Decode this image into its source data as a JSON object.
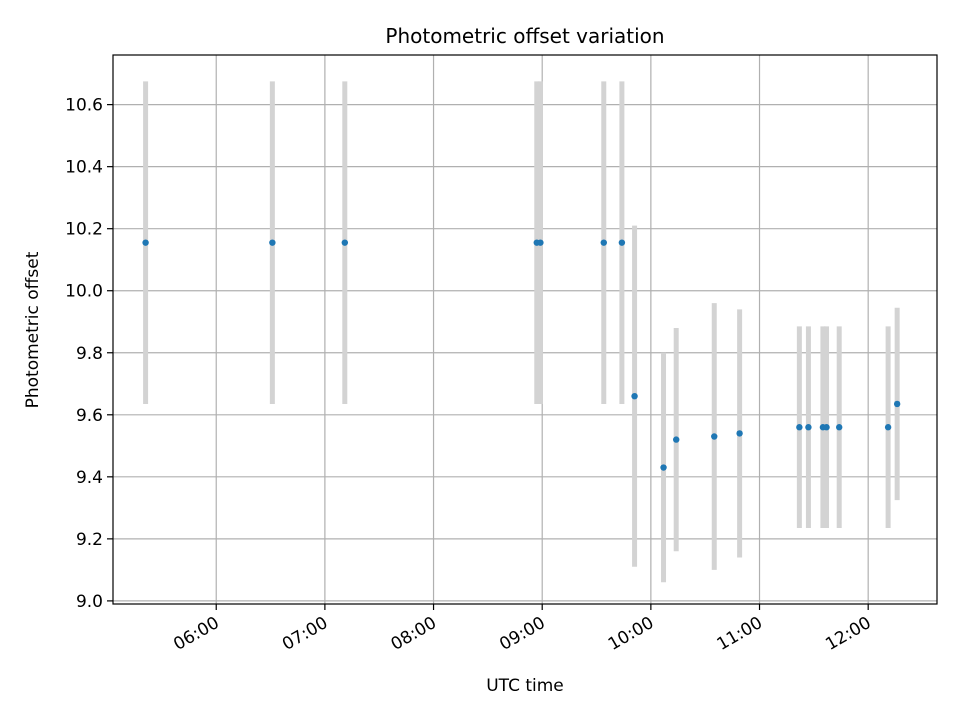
{
  "chart_data": {
    "type": "scatter",
    "title": "Photometric offset variation",
    "xlabel": "UTC time",
    "ylabel": "Photometric offset",
    "x_ticks": [
      "06:00",
      "07:00",
      "08:00",
      "09:00",
      "10:00",
      "11:00",
      "12:00"
    ],
    "y_ticks": [
      "9.0",
      "9.2",
      "9.4",
      "9.6",
      "9.8",
      "10.0",
      "10.2",
      "10.4",
      "10.6"
    ],
    "xlim": [
      "05:03",
      "12:38"
    ],
    "ylim": [
      8.99,
      10.76
    ],
    "grid": true,
    "colors": {
      "points": "#1f77b4",
      "error_bars": "#d3d3d3",
      "grid": "#b0b0b0"
    },
    "series": [
      {
        "points": [
          {
            "x": "05:21",
            "y": 10.155,
            "err": 0.52
          },
          {
            "x": "06:31",
            "y": 10.155,
            "err": 0.52
          },
          {
            "x": "07:11",
            "y": 10.155,
            "err": 0.52
          },
          {
            "x": "08:57",
            "y": 10.155,
            "err": 0.52
          },
          {
            "x": "08:59",
            "y": 10.155,
            "err": 0.52
          },
          {
            "x": "09:34",
            "y": 10.155,
            "err": 0.52
          },
          {
            "x": "09:44",
            "y": 10.155,
            "err": 0.52
          },
          {
            "x": "09:51",
            "y": 9.66,
            "err": 0.55
          },
          {
            "x": "10:07",
            "y": 9.43,
            "err": 0.37
          },
          {
            "x": "10:14",
            "y": 9.52,
            "err": 0.36
          },
          {
            "x": "10:35",
            "y": 9.53,
            "err": 0.43
          },
          {
            "x": "10:49",
            "y": 9.54,
            "err": 0.4
          },
          {
            "x": "11:22",
            "y": 9.56,
            "err": 0.325
          },
          {
            "x": "11:27",
            "y": 9.56,
            "err": 0.325
          },
          {
            "x": "11:35",
            "y": 9.56,
            "err": 0.325
          },
          {
            "x": "11:37",
            "y": 9.56,
            "err": 0.325
          },
          {
            "x": "11:44",
            "y": 9.56,
            "err": 0.325
          },
          {
            "x": "12:11",
            "y": 9.56,
            "err": 0.325
          },
          {
            "x": "12:16",
            "y": 9.635,
            "err": 0.31
          }
        ]
      }
    ]
  }
}
